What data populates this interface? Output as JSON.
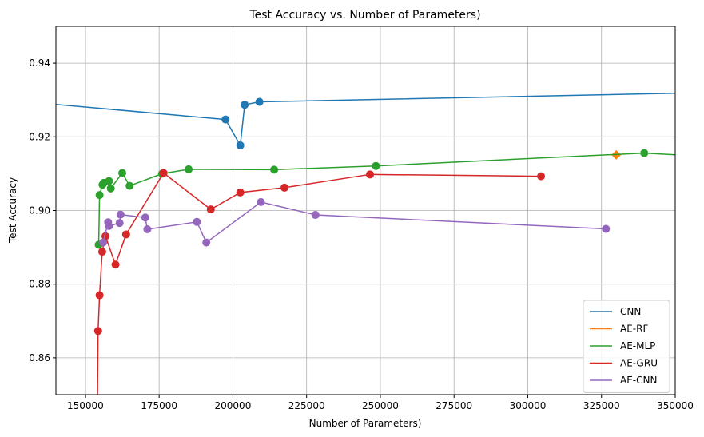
{
  "chart_data": {
    "type": "line",
    "title": "Test Accuracy vs. Number of Parameters)",
    "xlabel": "Number of Parameters)",
    "ylabel": "Test Accuracy",
    "xlim": [
      140000,
      350000
    ],
    "ylim": [
      0.85,
      0.95
    ],
    "xticks": [
      150000,
      175000,
      200000,
      225000,
      250000,
      275000,
      300000,
      325000,
      350000
    ],
    "yticks": [
      0.86,
      0.88,
      0.9,
      0.92,
      0.94
    ],
    "grid": true,
    "legend_position": "bottom-right",
    "series": [
      {
        "name": "CNN",
        "color": "#1f77b4",
        "marker": "circle",
        "points": [
          [
            60000,
            0.9345
          ],
          [
            197500,
            0.9247
          ],
          [
            202500,
            0.9177
          ],
          [
            204000,
            0.9287
          ],
          [
            209000,
            0.9295
          ],
          [
            360000,
            0.932
          ]
        ],
        "visible_markers": [
          1,
          2,
          3,
          4
        ]
      },
      {
        "name": "AE-RF",
        "color": "#ff7f0e",
        "marker": "diamond",
        "points": [
          [
            330000,
            0.9151
          ]
        ],
        "visible_markers": [
          0
        ]
      },
      {
        "name": "AE-MLP",
        "color": "#2ca02c",
        "marker": "circle",
        "points": [
          [
            154500,
            0.8907
          ],
          [
            154800,
            0.9042
          ],
          [
            155800,
            0.907
          ],
          [
            156200,
            0.9075
          ],
          [
            158000,
            0.908
          ],
          [
            158600,
            0.906
          ],
          [
            162500,
            0.9102
          ],
          [
            165000,
            0.9067
          ],
          [
            176000,
            0.91
          ],
          [
            185000,
            0.9112
          ],
          [
            214000,
            0.9111
          ],
          [
            248500,
            0.9121
          ],
          [
            339500,
            0.9156
          ],
          [
            360000,
            0.9147
          ]
        ],
        "visible_markers": [
          0,
          1,
          2,
          3,
          4,
          5,
          6,
          7,
          8,
          9,
          10,
          11,
          12
        ]
      },
      {
        "name": "AE-GRU",
        "color": "#d62728",
        "marker": "circle",
        "points": [
          [
            154000,
            0.84
          ],
          [
            154300,
            0.8673
          ],
          [
            154800,
            0.877
          ],
          [
            155700,
            0.8888
          ],
          [
            156800,
            0.893
          ],
          [
            160200,
            0.8853
          ],
          [
            163800,
            0.8935
          ],
          [
            176500,
            0.9102
          ],
          [
            192500,
            0.9003
          ],
          [
            202500,
            0.9049
          ],
          [
            217500,
            0.9062
          ],
          [
            246500,
            0.9098
          ],
          [
            304500,
            0.9093
          ]
        ],
        "visible_markers": [
          1,
          2,
          3,
          4,
          5,
          6,
          7,
          8,
          9,
          10,
          11,
          12
        ]
      },
      {
        "name": "AE-CNN",
        "color": "#9467bd",
        "marker": "circle",
        "points": [
          [
            156000,
            0.8913
          ],
          [
            157700,
            0.8968
          ],
          [
            158000,
            0.8958
          ],
          [
            161600,
            0.8966
          ],
          [
            161900,
            0.8989
          ],
          [
            170300,
            0.8981
          ],
          [
            171000,
            0.8949
          ],
          [
            187800,
            0.8969
          ],
          [
            191000,
            0.8913
          ],
          [
            209500,
            0.9023
          ],
          [
            228000,
            0.8988
          ],
          [
            326500,
            0.895
          ]
        ],
        "visible_markers": [
          0,
          1,
          2,
          3,
          4,
          5,
          6,
          7,
          8,
          9,
          10,
          11
        ]
      }
    ]
  }
}
